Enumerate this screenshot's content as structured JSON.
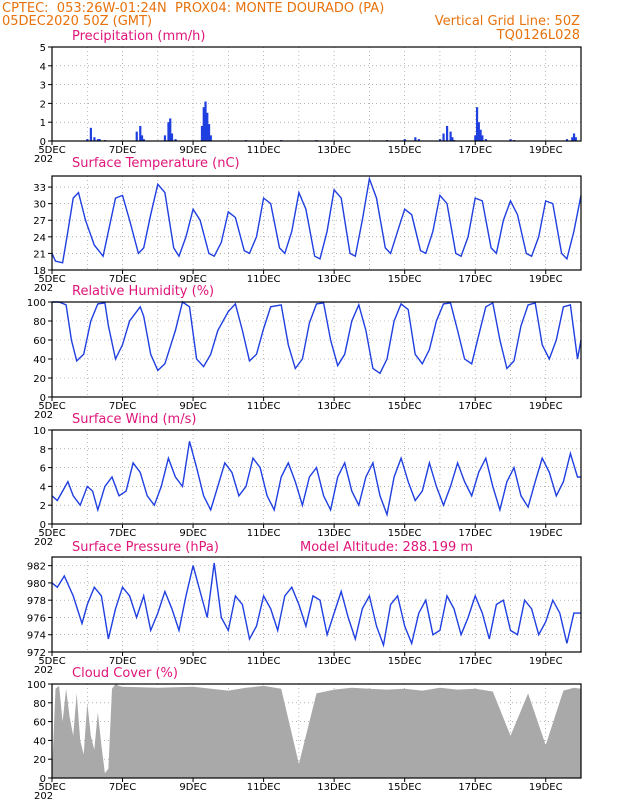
{
  "header": {
    "line1_left": "CPTEC:  053:26W-01:24N  PROX04: MONTE DOURADO (PA)",
    "line2_left": "05DEC2020 50Z (GMT)",
    "line2_right": "Vertical Grid Line: 50Z",
    "line3_right": "TQ0126L028"
  },
  "x_axis": {
    "labels": [
      "5DEC",
      "7DEC",
      "9DEC",
      "11DEC",
      "13DEC",
      "15DEC",
      "17DEC",
      "19DEC"
    ],
    "sublabel": "202"
  },
  "colors": {
    "title": "#e0157a",
    "header": "#e8720c",
    "line": "#1f3fe0",
    "bar": "#1f3fe0",
    "cloud": "#a9a9a9"
  },
  "chart_data": [
    {
      "type": "bar",
      "title": "Precipitation (mm/h)",
      "ylim": [
        0,
        5
      ],
      "yticks": [
        "0",
        "1",
        "2",
        "3",
        "4",
        "5"
      ],
      "grid": true,
      "x_unit": "days since 5DEC 00Z",
      "x": [
        1.0,
        1.1,
        1.2,
        1.3,
        1.35,
        1.5,
        2.4,
        2.5,
        2.55,
        2.6,
        3.2,
        3.3,
        3.35,
        3.4,
        3.5,
        4.25,
        4.3,
        4.35,
        4.4,
        4.45,
        4.5,
        5.5,
        6.5,
        7.5,
        9.5,
        10.0,
        10.3,
        10.4,
        11.0,
        11.1,
        11.2,
        11.3,
        11.35,
        11.4,
        12.0,
        12.05,
        12.1,
        12.15,
        12.2,
        12.3,
        13.0,
        13.1,
        14.6,
        14.75,
        14.8,
        14.85
      ],
      "values": [
        0.1,
        0.7,
        0.2,
        0.1,
        0.1,
        0.05,
        0.5,
        0.8,
        0.3,
        0.1,
        0.3,
        1.0,
        1.2,
        0.4,
        0.1,
        0.8,
        1.8,
        2.1,
        1.5,
        0.9,
        0.3,
        0.05,
        0.05,
        0.05,
        0.05,
        0.1,
        0.2,
        0.1,
        0.1,
        0.4,
        0.8,
        0.5,
        0.2,
        0.05,
        0.3,
        1.8,
        1.0,
        0.6,
        0.3,
        0.1,
        0.1,
        0.05,
        0.1,
        0.2,
        0.4,
        0.2
      ]
    },
    {
      "type": "line",
      "title": "Surface Temperature (nC)",
      "ylim": [
        18,
        35
      ],
      "yticks": [
        "18",
        "21",
        "24",
        "27",
        "30",
        "33"
      ],
      "grid": true,
      "x_unit": "days since 5DEC 00Z",
      "x": [
        0,
        0.1,
        0.3,
        0.45,
        0.6,
        0.75,
        0.95,
        1.2,
        1.45,
        1.6,
        1.8,
        2.0,
        2.2,
        2.45,
        2.6,
        2.8,
        3.0,
        3.2,
        3.45,
        3.6,
        3.8,
        4.0,
        4.2,
        4.45,
        4.6,
        4.8,
        5.0,
        5.2,
        5.45,
        5.6,
        5.8,
        6.0,
        6.2,
        6.45,
        6.6,
        6.8,
        7.0,
        7.2,
        7.45,
        7.6,
        7.8,
        8.0,
        8.2,
        8.45,
        8.6,
        8.8,
        9.0,
        9.2,
        9.45,
        9.6,
        9.8,
        10.0,
        10.2,
        10.45,
        10.6,
        10.8,
        11.0,
        11.2,
        11.45,
        11.6,
        11.8,
        12.0,
        12.2,
        12.45,
        12.6,
        12.8,
        13.0,
        13.2,
        13.45,
        13.6,
        13.8,
        14.0,
        14.2,
        14.45,
        14.6,
        14.8,
        15.0
      ],
      "values": [
        21,
        19.6,
        19.3,
        25,
        31,
        32,
        27,
        22.5,
        20.5,
        25,
        31,
        31.5,
        27,
        21,
        22,
        28,
        33.5,
        32,
        22,
        20.5,
        24,
        29,
        27,
        21,
        20.5,
        23,
        28.5,
        27.5,
        21.5,
        21,
        24,
        31,
        30,
        22,
        21,
        25,
        32,
        29,
        20.5,
        20,
        25,
        32.5,
        31,
        21,
        20.5,
        27,
        34.5,
        31,
        22,
        21,
        25,
        29,
        28,
        21.5,
        21,
        25,
        31.5,
        30,
        21,
        20.5,
        24,
        31,
        30.5,
        22,
        21,
        27,
        30.5,
        28,
        21,
        20.5,
        24,
        30.5,
        30,
        21,
        20,
        25,
        31.5
      ]
    },
    {
      "type": "line",
      "title": "Relative Humidity (%)",
      "ylim": [
        0,
        100
      ],
      "yticks": [
        "0",
        "20",
        "40",
        "60",
        "80",
        "100"
      ],
      "grid": true,
      "x_unit": "days since 5DEC 00Z",
      "x": [
        0,
        0.2,
        0.4,
        0.55,
        0.7,
        0.9,
        1.1,
        1.3,
        1.5,
        1.6,
        1.8,
        2.0,
        2.2,
        2.5,
        2.6,
        2.8,
        3.0,
        3.2,
        3.5,
        3.7,
        3.9,
        4.1,
        4.3,
        4.5,
        4.7,
        5.0,
        5.2,
        5.4,
        5.6,
        5.8,
        6.0,
        6.2,
        6.5,
        6.7,
        6.9,
        7.1,
        7.3,
        7.5,
        7.7,
        7.9,
        8.1,
        8.3,
        8.5,
        8.7,
        8.9,
        9.1,
        9.3,
        9.5,
        9.7,
        9.9,
        10.1,
        10.3,
        10.5,
        10.7,
        10.9,
        11.1,
        11.3,
        11.5,
        11.7,
        11.9,
        12.1,
        12.3,
        12.5,
        12.7,
        12.9,
        13.1,
        13.3,
        13.5,
        13.7,
        13.9,
        14.1,
        14.3,
        14.5,
        14.7,
        14.9,
        15.0
      ],
      "values": [
        100,
        100,
        97,
        60,
        38,
        45,
        80,
        98,
        99,
        75,
        40,
        55,
        80,
        95,
        85,
        45,
        28,
        35,
        70,
        100,
        95,
        40,
        32,
        45,
        70,
        90,
        98,
        70,
        38,
        45,
        72,
        95,
        97,
        55,
        30,
        40,
        78,
        98,
        99,
        60,
        33,
        45,
        80,
        97,
        70,
        30,
        25,
        40,
        80,
        98,
        92,
        45,
        35,
        50,
        80,
        98,
        99,
        70,
        40,
        35,
        65,
        95,
        99,
        60,
        30,
        38,
        75,
        97,
        99,
        55,
        40,
        60,
        95,
        97,
        40,
        60
      ]
    },
    {
      "type": "line",
      "title": "Surface Wind (m/s)",
      "ylim": [
        0,
        10
      ],
      "yticks": [
        "0",
        "2",
        "4",
        "6",
        "8",
        "10"
      ],
      "grid": true,
      "x_unit": "days since 5DEC 00Z",
      "x": [
        0,
        0.15,
        0.3,
        0.45,
        0.6,
        0.8,
        1.0,
        1.15,
        1.3,
        1.5,
        1.7,
        1.9,
        2.1,
        2.3,
        2.5,
        2.7,
        2.9,
        3.1,
        3.3,
        3.5,
        3.7,
        3.9,
        4.1,
        4.3,
        4.5,
        4.7,
        4.9,
        5.1,
        5.3,
        5.5,
        5.7,
        5.9,
        6.1,
        6.3,
        6.5,
        6.7,
        6.9,
        7.1,
        7.3,
        7.5,
        7.7,
        7.9,
        8.1,
        8.3,
        8.5,
        8.7,
        8.9,
        9.1,
        9.3,
        9.5,
        9.7,
        9.9,
        10.1,
        10.3,
        10.5,
        10.7,
        10.9,
        11.1,
        11.3,
        11.5,
        11.7,
        11.9,
        12.1,
        12.3,
        12.5,
        12.7,
        12.9,
        13.1,
        13.3,
        13.5,
        13.7,
        13.9,
        14.1,
        14.3,
        14.5,
        14.7,
        14.9,
        15.0
      ],
      "values": [
        3,
        2.5,
        3.5,
        4.5,
        3,
        2,
        4,
        3.5,
        1.5,
        4,
        5,
        3,
        3.5,
        6.5,
        5.5,
        3,
        2,
        4,
        7,
        5,
        4,
        8.8,
        6,
        3,
        1.5,
        4,
        6.5,
        5.5,
        3,
        4,
        7,
        6,
        3,
        1.5,
        5,
        6.5,
        4.5,
        2,
        5,
        6,
        3,
        1.5,
        5,
        6.5,
        3.5,
        2,
        5,
        6.5,
        3,
        1,
        5,
        7,
        4.5,
        2.5,
        3.5,
        6.5,
        4,
        2,
        4,
        6.5,
        4.5,
        3,
        5.5,
        7,
        4,
        1.5,
        4.5,
        6,
        3,
        1.8,
        4.5,
        7,
        5.5,
        3,
        4.5,
        7.5,
        5,
        5
      ]
    },
    {
      "type": "line",
      "title": "Surface Pressure (hPa)",
      "annotation": "Model Altitude: 288.199 m",
      "ylim": [
        972,
        983
      ],
      "yticks": [
        "972",
        "974",
        "976",
        "978",
        "980",
        "982"
      ],
      "grid": true,
      "x_unit": "days since 5DEC 00Z",
      "x": [
        0,
        0.15,
        0.35,
        0.6,
        0.85,
        1.0,
        1.2,
        1.4,
        1.6,
        1.8,
        2.0,
        2.2,
        2.4,
        2.6,
        2.8,
        3.0,
        3.2,
        3.4,
        3.6,
        3.8,
        4.0,
        4.2,
        4.4,
        4.6,
        4.8,
        5.0,
        5.2,
        5.4,
        5.6,
        5.8,
        6.0,
        6.2,
        6.4,
        6.6,
        6.8,
        7.0,
        7.2,
        7.4,
        7.6,
        7.8,
        8.0,
        8.2,
        8.4,
        8.6,
        8.8,
        9.0,
        9.2,
        9.4,
        9.6,
        9.8,
        10.0,
        10.2,
        10.4,
        10.6,
        10.8,
        11.0,
        11.2,
        11.4,
        11.6,
        11.8,
        12.0,
        12.2,
        12.4,
        12.6,
        12.8,
        13.0,
        13.2,
        13.4,
        13.6,
        13.8,
        14.0,
        14.2,
        14.4,
        14.6,
        14.8,
        15.0
      ],
      "values": [
        980,
        979.5,
        980.8,
        978.5,
        975.3,
        977.5,
        979.5,
        978.5,
        973.5,
        977,
        979.5,
        978.5,
        976,
        978.5,
        974.5,
        976.5,
        979,
        977,
        974.5,
        978.5,
        982,
        979,
        976,
        982.3,
        976,
        974.5,
        978.5,
        977.5,
        973.5,
        975,
        978.5,
        977,
        974.5,
        978.5,
        979.5,
        977.5,
        975,
        978.5,
        978,
        974,
        976.5,
        979,
        976,
        973.5,
        977,
        978.5,
        975,
        972.8,
        977.5,
        978.5,
        975,
        973,
        976.5,
        978,
        974,
        974.5,
        978.5,
        977,
        974,
        976,
        978.5,
        976.5,
        973.5,
        977.5,
        978,
        974.5,
        974,
        978,
        977,
        974,
        975.5,
        978,
        976.5,
        973,
        976.5,
        976.5
      ]
    },
    {
      "type": "area",
      "title": "Cloud Cover (%)",
      "ylim": [
        0,
        100
      ],
      "yticks": [
        "0",
        "20",
        "40",
        "60",
        "80",
        "100"
      ],
      "grid": true,
      "x_unit": "days since 5DEC 00Z",
      "x": [
        0,
        0.1,
        0.2,
        0.3,
        0.4,
        0.5,
        0.6,
        0.7,
        0.8,
        0.9,
        1.0,
        1.1,
        1.2,
        1.3,
        1.4,
        1.5,
        1.6,
        1.7,
        1.8,
        1.9,
        2.0,
        3.0,
        4.0,
        5.0,
        5.5,
        6.0,
        6.5,
        7.0,
        7.5,
        8.0,
        8.5,
        9.0,
        9.5,
        10.0,
        10.5,
        11.0,
        11.5,
        12.0,
        12.5,
        13.0,
        13.5,
        14.0,
        14.5,
        14.8,
        15.0
      ],
      "values": [
        5,
        95,
        98,
        60,
        95,
        65,
        45,
        90,
        40,
        25,
        80,
        45,
        30,
        70,
        35,
        5,
        10,
        95,
        100,
        98,
        97,
        96,
        97,
        93,
        96,
        98,
        95,
        15,
        90,
        94,
        96,
        95,
        94,
        95,
        93,
        96,
        94,
        95,
        92,
        45,
        90,
        35,
        93,
        96,
        95
      ]
    }
  ]
}
